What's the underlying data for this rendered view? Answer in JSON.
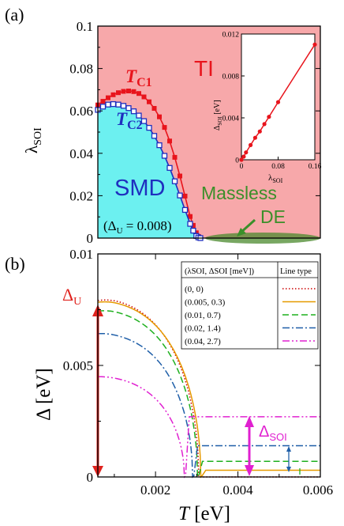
{
  "colors": {
    "ti_region": "#f7a8aa",
    "smd_region": "#6cf0f0",
    "tc1": "#e8141c",
    "tc2": "#1f2fbf",
    "massless_fill": "#4b8a2e",
    "massless_text": "#3b8f2a",
    "delta_u_arrow": "#e0231e",
    "delta_soi_arrow": "#e020d0",
    "series_0": "#cc0000",
    "series_1": "#e69a00",
    "series_2": "#1fb01f",
    "series_3": "#1f5fa8",
    "series_4": "#e020d0"
  },
  "panel_a": {
    "panel_label": "(a)",
    "ylabel_main": "λ",
    "ylabel_sub": "SOI",
    "ytick_labels": [
      "0",
      "0.02",
      "0.04",
      "0.06",
      "0.08",
      "0.1"
    ],
    "region_ti": "TI",
    "region_smd": "SMD",
    "tc1_main": "T",
    "tc1_sub": "C1",
    "tc2_main": "T",
    "tc2_sub": "C2",
    "delta_u_note_open": "(Δ",
    "delta_u_note_sub": "U",
    "delta_u_note_close": " = 0.008)",
    "massless_line1": "Massless",
    "massless_line2": "DE",
    "inset": {
      "xlabel_main": "λ",
      "xlabel_sub": "SOI",
      "ylabel_main": "Δ",
      "ylabel_sub": "SOI",
      "ylabel_unit": " [eV]",
      "xtick_labels": [
        "0",
        "0.08",
        "0.16"
      ],
      "ytick_labels": [
        "0",
        "0.004",
        "0.008",
        "0.012"
      ]
    }
  },
  "panel_b": {
    "panel_label": "(b)",
    "ylabel_main": "Δ",
    "ylabel_unit": " [eV]",
    "xlabel_main": "T",
    "xlabel_unit": " [eV]",
    "ytick_labels": [
      "0",
      "0.005",
      "0.01"
    ],
    "xtick_labels": [
      "0.002",
      "0.004",
      "0.006"
    ],
    "delta_u_main": "Δ",
    "delta_u_sub": "U",
    "delta_soi_main": "Δ",
    "delta_soi_sub": "SOI",
    "legend": {
      "col1_header": "(λSOI, ΔSOI [meV])",
      "col2_header": "Line type",
      "rows": [
        "(0, 0)",
        "(0.005, 0.3)",
        "(0.01, 0.7)",
        "(0.02, 1.4)",
        "(0.04, 2.7)"
      ]
    }
  },
  "chart_data": [
    {
      "type": "area",
      "panel": "a",
      "title": "",
      "xlabel": "",
      "ylabel": "λSOI",
      "ylim": [
        0,
        0.1
      ],
      "yticks": [
        0,
        0.02,
        0.04,
        0.06,
        0.08,
        0.1
      ],
      "x_relative": [
        0.0,
        0.05,
        0.1,
        0.15,
        0.2,
        0.25,
        0.3,
        0.35,
        0.4,
        0.45,
        0.5,
        0.55,
        0.6,
        0.65,
        0.7,
        0.75,
        0.8,
        0.85,
        0.9,
        0.93,
        0.96,
        0.98,
        1.0
      ],
      "series": [
        {
          "name": "TC1",
          "marker": "filled-square",
          "values": [
            0.0628,
            0.0645,
            0.0662,
            0.0676,
            0.0686,
            0.0692,
            0.0694,
            0.0691,
            0.0682,
            0.0666,
            0.0643,
            0.0612,
            0.0572,
            0.0522,
            0.0458,
            0.0381,
            0.0293,
            0.0198,
            0.0102,
            0.006,
            0.0025,
            0.0008,
            0.0
          ]
        },
        {
          "name": "TC2",
          "marker": "open-square",
          "values": [
            0.0605,
            0.062,
            0.063,
            0.0632,
            0.063,
            0.0624,
            0.0613,
            0.0598,
            0.0578,
            0.0552,
            0.052,
            0.0482,
            0.0438,
            0.0388,
            0.0331,
            0.0268,
            0.0201,
            0.0133,
            0.0067,
            0.0035,
            0.001,
            0.0003,
            0.0
          ]
        }
      ],
      "regions": [
        "TI",
        "SMD",
        "Massless DE"
      ]
    },
    {
      "type": "line",
      "panel": "a-inset",
      "title": "",
      "xlabel": "λSOI",
      "ylabel": "ΔSOI [eV]",
      "xlim": [
        0,
        0.16
      ],
      "ylim": [
        0,
        0.012
      ],
      "series": [
        {
          "name": "",
          "x": [
            0,
            0.005,
            0.01,
            0.02,
            0.03,
            0.04,
            0.05,
            0.06,
            0.08,
            0.16
          ],
          "y": [
            0,
            0.0003,
            0.0007,
            0.0014,
            0.0021,
            0.0027,
            0.0034,
            0.0041,
            0.0055,
            0.011
          ]
        }
      ]
    },
    {
      "type": "line",
      "panel": "b",
      "title": "",
      "xlabel": "T [eV]",
      "ylabel": "Δ [eV]",
      "xlim": [
        0.0006,
        0.006
      ],
      "ylim": [
        0,
        0.01
      ],
      "xticks": [
        0.002,
        0.004,
        0.006
      ],
      "yticks": [
        0,
        0.005,
        0.01
      ],
      "series": [
        {
          "name": "(0, 0)",
          "style": "dotted",
          "Tc": 0.00305,
          "delta0": 0.00805,
          "floor": 0.0,
          "Tmax": 0.00115
        },
        {
          "name": "(0.005, 0.3)",
          "style": "solid",
          "Tc": 0.0031,
          "delta0": 0.00795,
          "floor": 0.0003,
          "Tmax": 0.0011
        },
        {
          "name": "(0.01, 0.7)",
          "style": "dashed",
          "Tc": 0.00302,
          "delta0": 0.00755,
          "floor": 0.0007,
          "Tmax": 0.0011
        },
        {
          "name": "(0.02, 1.4)",
          "style": "dashdot",
          "Tc": 0.0029,
          "delta0": 0.0065,
          "floor": 0.0014,
          "Tmax": 0.001
        },
        {
          "name": "(0.04, 2.7)",
          "style": "dashdotdot",
          "Tc": 0.0027,
          "delta0": 0.00455,
          "floor": 0.0027,
          "Tmax": 0.001
        }
      ]
    }
  ]
}
